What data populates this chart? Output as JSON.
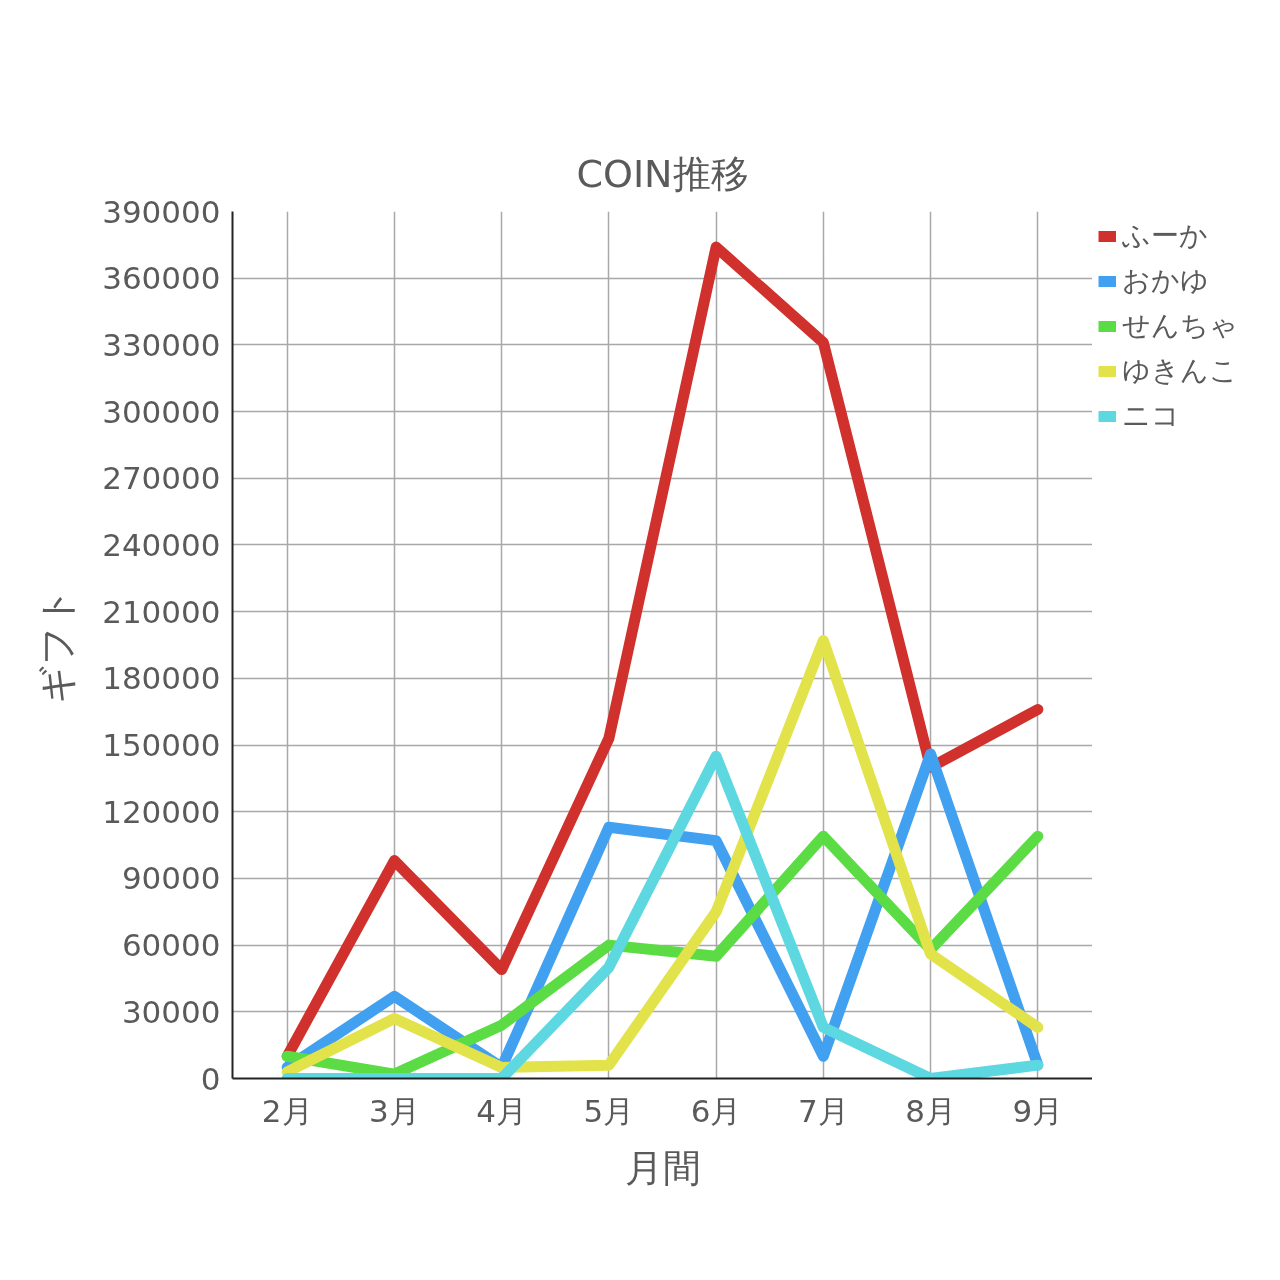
{
  "chart_data": {
    "type": "line",
    "title": "COIN推移",
    "xlabel": "月間",
    "ylabel": "ギフト",
    "categories": [
      "2月",
      "3月",
      "4月",
      "5月",
      "6月",
      "7月",
      "8月",
      "9月"
    ],
    "series": [
      {
        "name": "ふーか",
        "color": "#d0312d",
        "values": [
          10000,
          98000,
          49000,
          153000,
          374000,
          331000,
          140000,
          166000
        ]
      },
      {
        "name": "おかゆ",
        "color": "#42a0f0",
        "values": [
          5000,
          37000,
          5000,
          113000,
          107000,
          10000,
          146000,
          6000
        ]
      },
      {
        "name": "せんちゃ",
        "color": "#5cdc44",
        "values": [
          10000,
          2000,
          24000,
          60000,
          55000,
          109000,
          58000,
          109000
        ]
      },
      {
        "name": "ゆきんこ",
        "color": "#e2e34a",
        "values": [
          3000,
          27000,
          5000,
          6000,
          75000,
          197000,
          56000,
          23000
        ]
      },
      {
        "name": "ニコ",
        "color": "#5ed8e0",
        "values": [
          0,
          0,
          0,
          50000,
          145000,
          23000,
          0,
          6000
        ]
      }
    ],
    "ylim": [
      0,
      390000
    ],
    "yticks": [
      0,
      30000,
      60000,
      90000,
      120000,
      150000,
      180000,
      210000,
      240000,
      270000,
      300000,
      330000,
      360000,
      390000
    ],
    "grid": true,
    "legend": "top right",
    "line_style": "solid"
  }
}
